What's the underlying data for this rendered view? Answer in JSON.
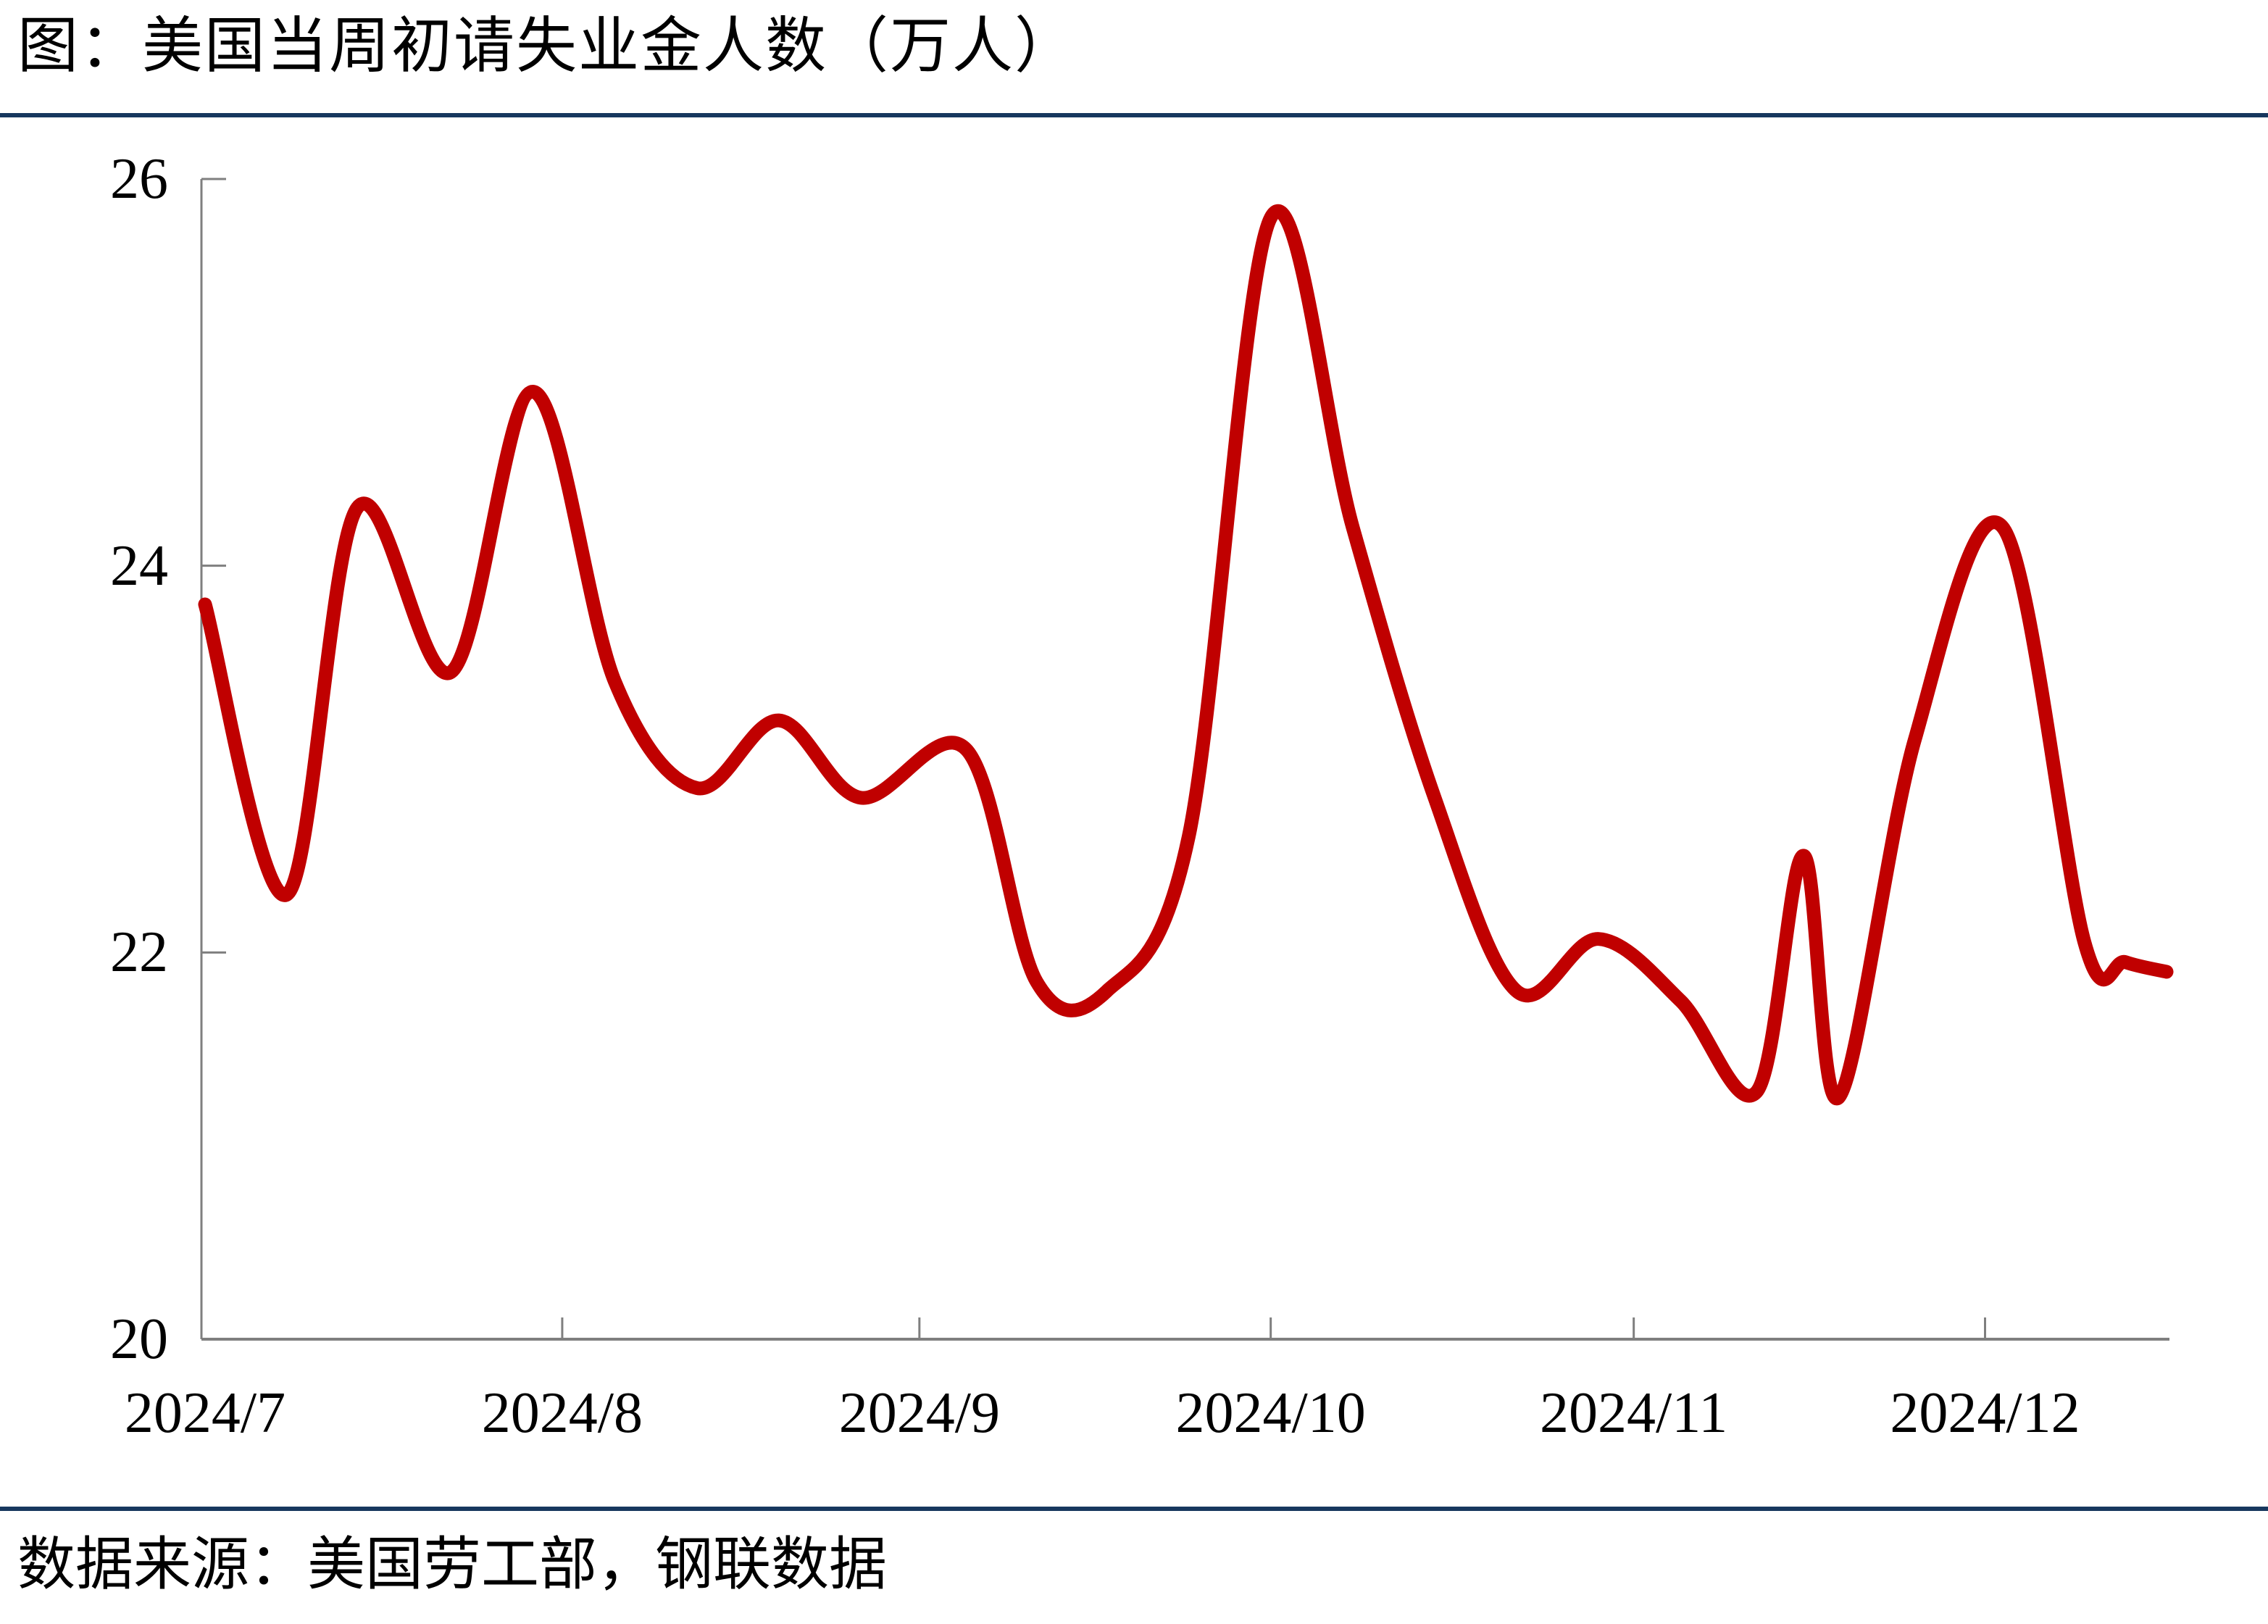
{
  "header": {
    "title": "图：美国当周初请失业金人数（万人）"
  },
  "footer": {
    "source": "数据来源：美国劳工部，钢联数据"
  },
  "colors": {
    "line": "#C00000",
    "axis": "#7F7F7F",
    "divider": "#17375E",
    "text": "#000000"
  },
  "chart_data": {
    "type": "line",
    "title": "美国当周初请失业金人数（万人）",
    "xlabel": "",
    "ylabel": "万人",
    "ylim": [
      20,
      26
    ],
    "yticks": [
      26,
      24,
      22,
      20
    ],
    "grid": false,
    "legend_position": "none",
    "x_axis_note": "day = days since 2024/7/1, weekly data 2024/7 - 2024/12",
    "x_range_days": [
      0,
      167.5
    ],
    "xticks": [
      {
        "label": "2024/7",
        "day": 0
      },
      {
        "label": "2024/8",
        "day": 30.5
      },
      {
        "label": "2024/9",
        "day": 61
      },
      {
        "label": "2024/10",
        "day": 91
      },
      {
        "label": "2024/11",
        "day": 122
      },
      {
        "label": "2024/12",
        "day": 152
      }
    ],
    "series": [
      {
        "name": "美国当周初请失业金人数",
        "unit": "万人",
        "points": [
          {
            "d": 0,
            "v": 23.8
          },
          {
            "d": 7,
            "v": 22.3
          },
          {
            "d": 13,
            "v": 24.3
          },
          {
            "d": 21,
            "v": 23.45
          },
          {
            "d": 28,
            "v": 24.9
          },
          {
            "d": 35,
            "v": 23.4
          },
          {
            "d": 42,
            "v": 22.85
          },
          {
            "d": 49,
            "v": 23.2
          },
          {
            "d": 56,
            "v": 22.8
          },
          {
            "d": 65,
            "v": 23.05
          },
          {
            "d": 71,
            "v": 21.85
          },
          {
            "d": 77,
            "v": 21.8
          },
          {
            "d": 84,
            "v": 22.6
          },
          {
            "d": 91,
            "v": 25.8
          },
          {
            "d": 98,
            "v": 24.2
          },
          {
            "d": 105,
            "v": 22.8
          },
          {
            "d": 112,
            "v": 21.8
          },
          {
            "d": 119,
            "v": 22.07
          },
          {
            "d": 126,
            "v": 21.75
          },
          {
            "d": 132.5,
            "v": 21.28
          },
          {
            "d": 136.5,
            "v": 22.5
          },
          {
            "d": 139.5,
            "v": 21.25
          },
          {
            "d": 146,
            "v": 23.1
          },
          {
            "d": 153.5,
            "v": 24.2
          },
          {
            "d": 160.5,
            "v": 22.05
          },
          {
            "d": 164,
            "v": 21.95
          },
          {
            "d": 167.5,
            "v": 21.9
          }
        ]
      }
    ]
  }
}
